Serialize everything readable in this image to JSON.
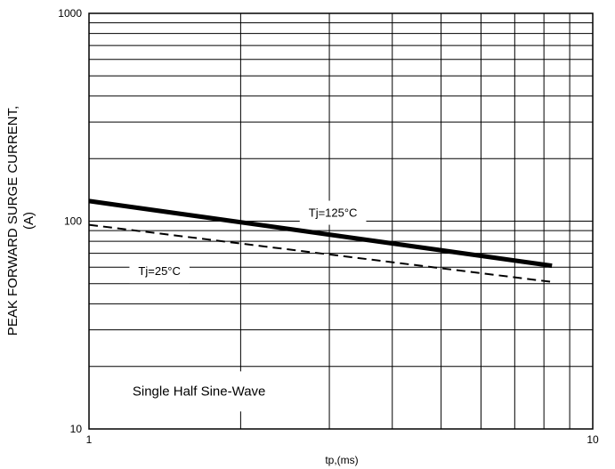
{
  "chart_data": {
    "type": "line",
    "title": "",
    "xlabel": "tp,(ms)",
    "ylabel_line1": "PEAK FORWARD SURGE CURRENT,",
    "ylabel_line2": "(A)",
    "x_scale": "log",
    "y_scale": "log",
    "xlim": [
      1,
      10
    ],
    "ylim": [
      10,
      1000
    ],
    "grid": true,
    "x_tick_labels": [
      {
        "value": 1,
        "label": "1"
      },
      {
        "value": 10,
        "label": "10"
      }
    ],
    "y_tick_labels": [
      {
        "value": 10,
        "label": "10"
      },
      {
        "value": 100,
        "label": "100"
      },
      {
        "value": 1000,
        "label": "1000"
      }
    ],
    "series": [
      {
        "name": "Tj=125°C",
        "style": "solid-bold",
        "color": "#000000",
        "points": [
          [
            1,
            125
          ],
          [
            8.3,
            61
          ]
        ]
      },
      {
        "name": "Tj=25°C",
        "style": "dashed",
        "color": "#000000",
        "points": [
          [
            1,
            96
          ],
          [
            8.3,
            51
          ]
        ]
      }
    ],
    "annotations": [
      {
        "text": "Single Half Sine-Wave",
        "x": 1.22,
        "y": 14.5,
        "size": "large"
      }
    ],
    "label_positions": [
      {
        "series": 0,
        "x": 3.05,
        "y": 105
      },
      {
        "series": 1,
        "x": 1.38,
        "y": 55
      }
    ]
  }
}
